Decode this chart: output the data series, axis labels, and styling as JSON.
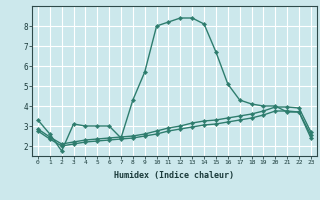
{
  "xlabel": "Humidex (Indice chaleur)",
  "bg_color": "#cce8ec",
  "grid_color": "#ffffff",
  "line_color": "#2e7d6e",
  "xlim": [
    -0.5,
    23.5
  ],
  "ylim": [
    1.5,
    9.0
  ],
  "yticks": [
    2,
    3,
    4,
    5,
    6,
    7,
    8
  ],
  "xticks": [
    0,
    1,
    2,
    3,
    4,
    5,
    6,
    7,
    8,
    9,
    10,
    11,
    12,
    13,
    14,
    15,
    16,
    17,
    18,
    19,
    20,
    21,
    22,
    23
  ],
  "curve1_x": [
    0,
    1,
    2,
    3,
    4,
    5,
    6,
    7,
    8,
    9,
    10,
    11,
    12,
    13,
    14,
    15,
    16,
    17,
    18,
    19,
    20,
    21,
    22,
    23
  ],
  "curve1_y": [
    3.3,
    2.6,
    1.75,
    3.1,
    3.0,
    3.0,
    3.0,
    2.4,
    4.3,
    5.7,
    8.0,
    8.2,
    8.4,
    8.4,
    8.1,
    6.7,
    5.1,
    4.3,
    4.1,
    4.0,
    4.0,
    3.7,
    3.7,
    2.4
  ],
  "curve2_x": [
    0,
    1,
    2,
    3,
    4,
    5,
    6,
    7,
    8,
    9,
    10,
    11,
    12,
    13,
    14,
    15,
    16,
    17,
    18,
    19,
    20,
    21,
    22,
    23
  ],
  "curve2_y": [
    2.85,
    2.45,
    2.1,
    2.2,
    2.3,
    2.35,
    2.4,
    2.45,
    2.5,
    2.6,
    2.75,
    2.9,
    3.0,
    3.15,
    3.25,
    3.3,
    3.4,
    3.5,
    3.6,
    3.75,
    3.95,
    3.95,
    3.9,
    2.7
  ],
  "curve3_x": [
    0,
    1,
    2,
    3,
    4,
    5,
    6,
    7,
    8,
    9,
    10,
    11,
    12,
    13,
    14,
    15,
    16,
    17,
    18,
    19,
    20,
    21,
    22,
    23
  ],
  "curve3_y": [
    2.75,
    2.35,
    2.0,
    2.1,
    2.2,
    2.25,
    2.3,
    2.35,
    2.4,
    2.5,
    2.6,
    2.75,
    2.85,
    2.95,
    3.05,
    3.1,
    3.2,
    3.3,
    3.4,
    3.55,
    3.75,
    3.75,
    3.7,
    2.55
  ]
}
